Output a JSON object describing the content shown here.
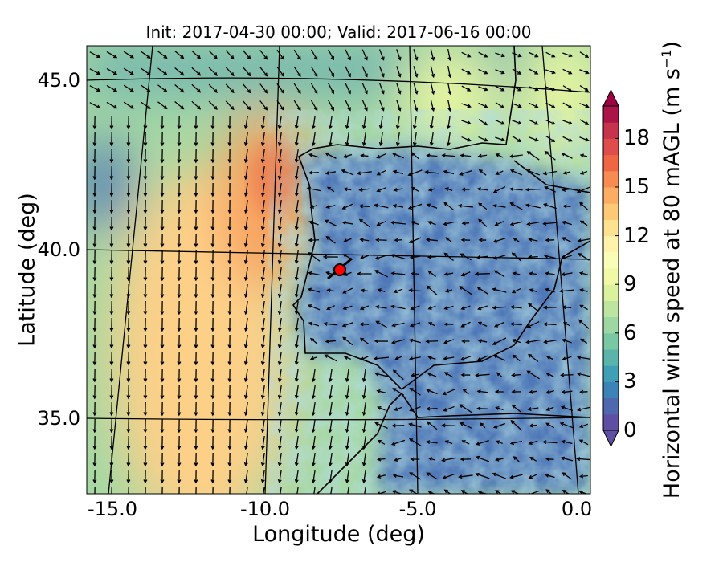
{
  "title": "Init: 2017-04-30 00:00; Valid: 2017-06-16 00:00",
  "xlabel": "Longitude (deg)",
  "ylabel": "Latitude (deg)",
  "x_ticks": [
    "-15.0",
    "-10.0",
    "-5.0",
    "0.0"
  ],
  "y_ticks": [
    "45.0",
    "40.0",
    "35.0"
  ],
  "colorbar": {
    "label_main": "Horizontal wind speed at 80 mAGL (m s",
    "label_sup": "−1",
    "label_end": ")",
    "ticks": [
      "0",
      "3",
      "6",
      "9",
      "12",
      "15",
      "18"
    ],
    "range": [
      0,
      20
    ],
    "extend": "both",
    "colormap": "Spectral_r"
  },
  "marker": {
    "lon": -7.7,
    "lat": 39.3,
    "color": "#ff0000"
  },
  "colors": {
    "land_low": "#4f78b8",
    "ocean_high": "#fdbf6f",
    "coast": "#000000"
  }
}
